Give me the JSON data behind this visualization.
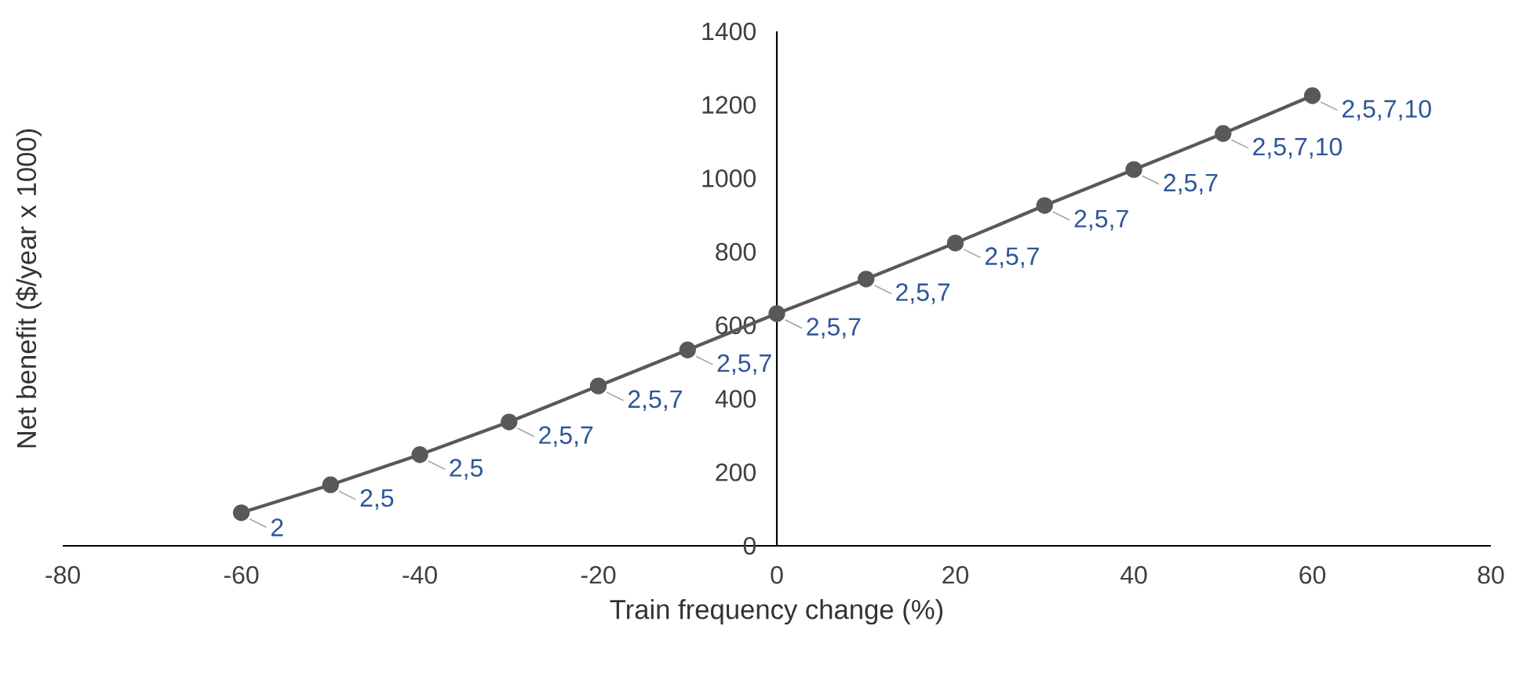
{
  "chart_data": {
    "type": "line",
    "xlabel": "Train frequency change (%)",
    "ylabel": "Net benefit ($/year x 1000)",
    "x": [
      -60,
      -50,
      -40,
      -30,
      -20,
      -10,
      0,
      10,
      20,
      30,
      40,
      50,
      60
    ],
    "series": [
      {
        "color": "#595959",
        "values": [
          90,
          166,
          248,
          337,
          435,
          533,
          632,
          726,
          824,
          926,
          1024,
          1122,
          1225
        ]
      }
    ],
    "annotations": [
      {
        "text": "2",
        "x": -60,
        "y": 90
      },
      {
        "text": "2,5",
        "x": -50,
        "y": 166
      },
      {
        "text": "2,5",
        "x": -40,
        "y": 248
      },
      {
        "text": "2,5,7",
        "x": -30,
        "y": 337
      },
      {
        "text": "2,5,7",
        "x": -20,
        "y": 435
      },
      {
        "text": "2,5,7",
        "x": -10,
        "y": 533
      },
      {
        "text": "2,5,7",
        "x": 0,
        "y": 632
      },
      {
        "text": "2,5,7",
        "x": 10,
        "y": 726
      },
      {
        "text": "2,5,7",
        "x": 20,
        "y": 824
      },
      {
        "text": "2,5,7",
        "x": 30,
        "y": 926
      },
      {
        "text": "2,5,7",
        "x": 40,
        "y": 1024
      },
      {
        "text": "2,5,7,10",
        "x": 50,
        "y": 1122
      },
      {
        "text": "2,5,7,10",
        "x": 60,
        "y": 1225
      }
    ],
    "xlim": [
      -80,
      80
    ],
    "ylim": [
      0,
      1400
    ],
    "xticks": [
      -80,
      -60,
      -40,
      -20,
      0,
      20,
      40,
      60,
      80
    ],
    "yticks": [
      0,
      200,
      400,
      600,
      800,
      1000,
      1200,
      1400
    ],
    "grid": false,
    "marker": "circle",
    "line_style": "solid"
  }
}
